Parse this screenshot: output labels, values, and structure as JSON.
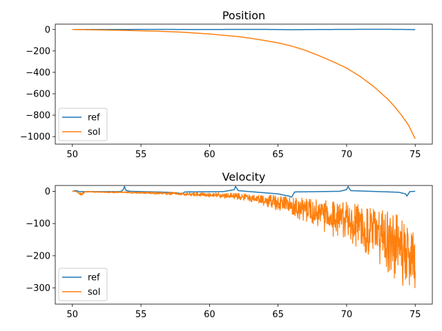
{
  "chart_data": [
    {
      "type": "line",
      "title": "Position",
      "xlabel": "",
      "ylabel": "",
      "xlim": [
        48.75,
        76.25
      ],
      "ylim": [
        -1070,
        50
      ],
      "xticks": [
        50,
        55,
        60,
        65,
        70,
        75
      ],
      "xtick_labels": [
        "50",
        "55",
        "60",
        "65",
        "70",
        "75"
      ],
      "yticks": [
        0,
        -200,
        -400,
        -600,
        -800,
        -1000
      ],
      "ytick_labels": [
        "0",
        "−200",
        "−400",
        "−600",
        "−800",
        "−1000"
      ],
      "grid": false,
      "legend": "lower-left",
      "series": [
        {
          "name": "ref",
          "color": "#1f77b4",
          "style": "smooth",
          "x": [
            50,
            52,
            53.8,
            55,
            57,
            58,
            60,
            62,
            64,
            66,
            68,
            70,
            72,
            74,
            75
          ],
          "y": [
            0,
            0,
            0,
            1,
            1,
            0,
            0,
            1,
            1,
            -2,
            0,
            1,
            2,
            1,
            -1
          ]
        },
        {
          "name": "sol",
          "color": "#ff7f0e",
          "style": "smooth",
          "x": [
            50,
            52,
            54,
            56,
            58,
            60,
            62,
            63,
            64,
            65,
            66,
            67,
            68,
            69,
            70,
            71,
            72,
            73,
            73.5,
            74,
            74.5,
            75
          ],
          "y": [
            0,
            -4,
            -9,
            -15,
            -25,
            -42,
            -65,
            -82,
            -102,
            -125,
            -155,
            -195,
            -245,
            -300,
            -360,
            -440,
            -535,
            -650,
            -720,
            -800,
            -890,
            -1020
          ]
        }
      ]
    },
    {
      "type": "line",
      "title": "Velocity",
      "xlabel": "",
      "ylabel": "",
      "xlim": [
        48.75,
        76.25
      ],
      "ylim": [
        -350,
        18
      ],
      "xticks": [
        50,
        55,
        60,
        65,
        70,
        75
      ],
      "xtick_labels": [
        "50",
        "55",
        "60",
        "65",
        "70",
        "75"
      ],
      "yticks": [
        0,
        -100,
        -200,
        -300
      ],
      "ytick_labels": [
        "0",
        "−100",
        "−200",
        "−300"
      ],
      "grid": false,
      "legend": "lower-left",
      "series": [
        {
          "name": "ref",
          "color": "#1f77b4",
          "style": "spiky",
          "x": [
            50,
            50.3,
            50.5,
            52,
            53.5,
            53.7,
            53.8,
            53.9,
            54.2,
            57,
            57.8,
            57.9,
            58.2,
            61,
            61.8,
            61.9,
            62.1,
            65,
            65.8,
            66.0,
            66.2,
            69.5,
            70.0,
            70.1,
            70.3,
            73.8,
            74.3,
            74.4,
            74.6,
            75
          ],
          "y": [
            0,
            2,
            -1,
            -1,
            -1,
            5,
            15,
            3,
            0,
            -3,
            -6,
            -10,
            -2,
            -1,
            5,
            15,
            2,
            -8,
            -15,
            -18,
            -2,
            0,
            5,
            15,
            2,
            -3,
            -8,
            -15,
            -1,
            0
          ]
        },
        {
          "name": "sol",
          "color": "#ff7f0e",
          "style": "noisy",
          "x": [
            50,
            50.3,
            50.6,
            51,
            52,
            54,
            56,
            58,
            60,
            62,
            63,
            64,
            65,
            66,
            67,
            68,
            69,
            70,
            71,
            72,
            73,
            73.5,
            74,
            74.5,
            75
          ],
          "y_mean": [
            0,
            -1,
            -10,
            -1,
            -2,
            -3,
            -5,
            -7,
            -10,
            -14,
            -18,
            -23,
            -30,
            -38,
            -46,
            -55,
            -62,
            -70,
            -82,
            -95,
            -110,
            -125,
            -145,
            -170,
            -200
          ],
          "y_min": [
            0,
            -1,
            -15,
            -3,
            -4,
            -6,
            -9,
            -13,
            -18,
            -26,
            -34,
            -45,
            -60,
            -78,
            -95,
            -118,
            -140,
            -155,
            -185,
            -220,
            -255,
            -270,
            -290,
            -300,
            -335
          ],
          "y_max": [
            0,
            0,
            -5,
            0,
            0,
            -1,
            -2,
            -3,
            -4,
            -6,
            -8,
            -10,
            -14,
            -18,
            -22,
            -26,
            -30,
            -34,
            -40,
            -48,
            -60,
            -70,
            -80,
            -95,
            -130
          ]
        }
      ]
    }
  ]
}
